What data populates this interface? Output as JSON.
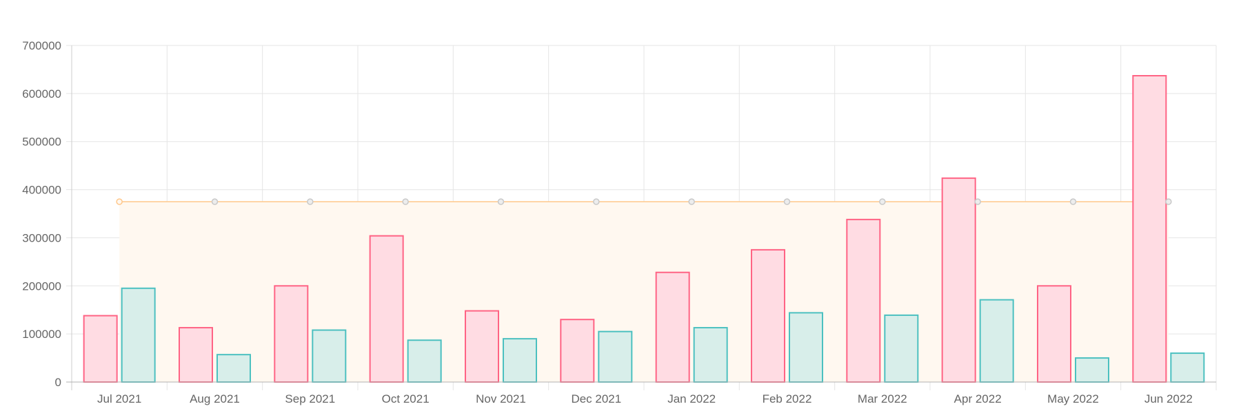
{
  "chart_data": {
    "type": "bar",
    "title": "",
    "xlabel": "",
    "ylabel": "",
    "ylim": [
      0,
      700000
    ],
    "yticks": [
      0,
      100000,
      200000,
      300000,
      400000,
      500000,
      600000,
      700000
    ],
    "categories": [
      "Jul 2021",
      "Aug 2021",
      "Sep 2021",
      "Oct 2021",
      "Nov 2021",
      "Dec 2021",
      "Jan 2022",
      "Feb 2022",
      "Mar 2022",
      "Apr 2022",
      "May 2022",
      "Jun 2022"
    ],
    "series": [
      {
        "type": "bar",
        "values": [
          138000,
          113000,
          200000,
          304000,
          148000,
          130000,
          228000,
          275000,
          338000,
          424000,
          200000,
          637000
        ],
        "fill": "#ffdce3",
        "stroke": "#ff6384"
      },
      {
        "type": "bar",
        "values": [
          195000,
          57000,
          108000,
          87000,
          90000,
          105000,
          113000,
          144000,
          139000,
          171000,
          50000,
          60000
        ],
        "fill": "#d8eeea",
        "stroke": "#4bc0c0"
      },
      {
        "type": "line",
        "values": [
          375000,
          375000,
          375000,
          375000,
          375000,
          375000,
          375000,
          375000,
          375000,
          375000,
          375000,
          375000
        ],
        "stroke": "#ffc78a",
        "fill": "#fff8f0",
        "point_colors": [
          "#ffc78a",
          "#c8c8c8",
          "#c8c8c8",
          "#c8c8c8",
          "#c8c8c8",
          "#c8c8c8",
          "#c8c8c8",
          "#c8c8c8",
          "#c8c8c8",
          "#c8c8c8",
          "#c8c8c8",
          "#c8c8c8"
        ]
      }
    ],
    "grid": true,
    "legend": "none"
  }
}
